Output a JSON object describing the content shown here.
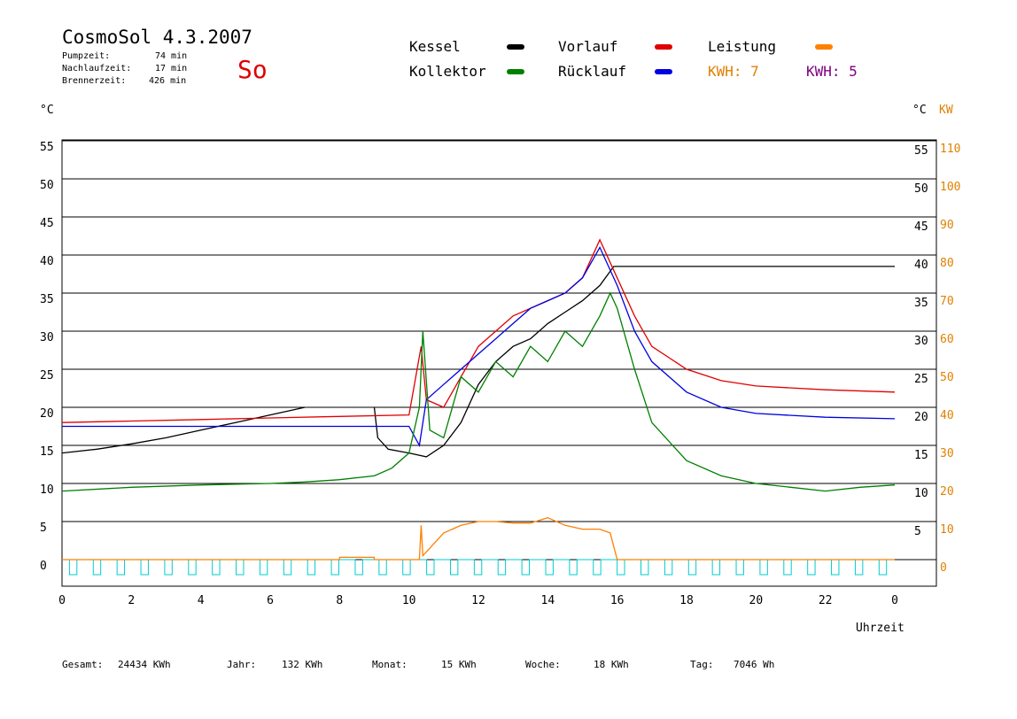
{
  "header": {
    "title": "CosmoSol 4.3.2007",
    "day": "So",
    "stats": [
      {
        "label": "Pumpzeit:",
        "value": "74 min"
      },
      {
        "label": "Nachlaufzeit:",
        "value": "17 min"
      },
      {
        "label": "Brennerzeit:",
        "value": "426 min"
      }
    ]
  },
  "legend": {
    "kessel": {
      "label": "Kessel",
      "color": "#000000"
    },
    "kollektor": {
      "label": "Kollektor",
      "color": "#008000"
    },
    "vorlauf": {
      "label": "Vorlauf",
      "color": "#e00000"
    },
    "ruecklauf": {
      "label": "Rücklauf",
      "color": "#0000e0"
    },
    "leistung": {
      "label": "Leistung",
      "color": "#ff8000"
    },
    "kwh_orange": {
      "label": "KWH: 7",
      "color": "#e08000"
    },
    "kwh_purple": {
      "label": "KWH: 5",
      "color": "#800080"
    }
  },
  "axes": {
    "left_unit": "°C",
    "right_unit": "°C",
    "right_unit2": "KW",
    "xlabel": "Uhrzeit"
  },
  "footer": [
    {
      "label": "Gesamt:",
      "value": "24434 KWh"
    },
    {
      "label": "Jahr:",
      "value": "132 KWh"
    },
    {
      "label": "Monat:",
      "value": "15 KWh"
    },
    {
      "label": "Woche:",
      "value": "18 KWh"
    },
    {
      "label": "Tag:",
      "value": "7046 Wh"
    }
  ],
  "chart_data": {
    "type": "line",
    "xlabel": "Uhrzeit",
    "ylabel": "°C",
    "y2label": "KW",
    "xlim": [
      0,
      24
    ],
    "ylim": [
      -3,
      55
    ],
    "x_ticks": [
      "0",
      "2",
      "4",
      "6",
      "8",
      "10",
      "12",
      "14",
      "16",
      "18",
      "20",
      "22",
      "0"
    ],
    "y_ticks": [
      "0",
      "5",
      "10",
      "15",
      "20",
      "25",
      "30",
      "35",
      "40",
      "45",
      "50",
      "55"
    ],
    "y2_ticks": [
      "0",
      "10",
      "20",
      "30",
      "40",
      "50",
      "60",
      "70",
      "80",
      "90",
      "100",
      "110"
    ],
    "grid": true,
    "series": [
      {
        "name": "Kessel",
        "color": "#000000",
        "x": [
          0,
          1,
          2,
          3,
          4,
          5,
          6,
          7,
          8,
          9,
          9.1,
          9.4,
          10,
          10.5,
          11,
          11.5,
          12,
          12.5,
          13,
          13.5,
          14,
          14.5,
          15,
          15.5,
          15.9,
          16.5,
          18,
          20,
          22,
          24
        ],
        "y": [
          14,
          14.5,
          15.2,
          16,
          17,
          18,
          19,
          20,
          null,
          20,
          16,
          14.5,
          14,
          13.5,
          15,
          18,
          23,
          26,
          28,
          29,
          31,
          32.5,
          34,
          36,
          38.5,
          38.5,
          38.5,
          38.5,
          38.5,
          38.5
        ]
      },
      {
        "name": "Vorlauf",
        "color": "#e00000",
        "x": [
          0,
          2,
          4,
          6,
          8,
          10,
          10.35,
          10.5,
          11,
          11.5,
          12,
          12.5,
          13,
          13.5,
          14,
          14.5,
          15,
          15.5,
          16,
          16.5,
          17,
          18,
          19,
          20,
          22,
          24
        ],
        "y": [
          18,
          18.2,
          18.4,
          18.6,
          18.8,
          19,
          28,
          21,
          20,
          24,
          28,
          30,
          32,
          33,
          34,
          35,
          37,
          42,
          37,
          32,
          28,
          25,
          23.5,
          22.8,
          22.3,
          22
        ]
      },
      {
        "name": "Rücklauf",
        "color": "#0000e0",
        "x": [
          0,
          2,
          4,
          6,
          8,
          10,
          10.3,
          10.5,
          11,
          11.5,
          12,
          12.5,
          13,
          13.5,
          14,
          14.5,
          15,
          15.5,
          16,
          16.5,
          17,
          18,
          19,
          20,
          22,
          24
        ],
        "y": [
          17.5,
          17.5,
          17.5,
          17.5,
          17.5,
          17.5,
          15,
          21,
          23,
          25,
          27,
          29,
          31,
          33,
          34,
          35,
          37,
          41,
          36,
          30,
          26,
          22,
          20,
          19.2,
          18.7,
          18.5
        ]
      },
      {
        "name": "Kollektor",
        "color": "#008000",
        "x": [
          0,
          2,
          4,
          6,
          7,
          8,
          9,
          9.5,
          10,
          10.3,
          10.4,
          10.6,
          11,
          11.5,
          12,
          12.5,
          13,
          13.5,
          14,
          14.5,
          15,
          15.5,
          15.8,
          16,
          16.5,
          17,
          18,
          19,
          20,
          21,
          22,
          23,
          24
        ],
        "y": [
          9,
          9.5,
          9.8,
          10,
          10.2,
          10.5,
          11,
          12,
          14,
          20,
          30,
          17,
          16,
          24,
          22,
          26,
          24,
          28,
          26,
          30,
          28,
          32,
          35,
          33,
          25,
          18,
          13,
          11,
          10,
          9.5,
          9,
          9.5,
          9.8
        ]
      },
      {
        "name": "Leistung",
        "color": "#ff8000",
        "x": [
          0,
          8,
          8,
          9,
          9,
          10.3,
          10.35,
          10.4,
          11,
          11.5,
          12,
          12.5,
          13,
          13.5,
          14,
          14.5,
          15,
          15.5,
          15.8,
          16,
          24
        ],
        "y": [
          0,
          0,
          0.3,
          0.3,
          0,
          0,
          4.5,
          0.5,
          3.5,
          4.5,
          5,
          5,
          4.8,
          4.8,
          5.5,
          4.5,
          4,
          4,
          3.5,
          0,
          0
        ]
      }
    ]
  }
}
